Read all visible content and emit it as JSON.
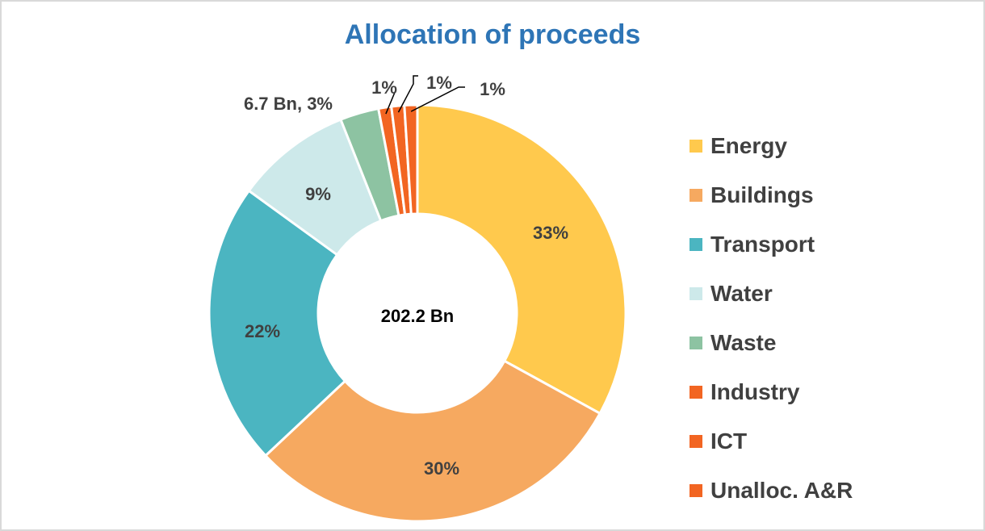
{
  "chart_data": {
    "type": "pie",
    "title": "Allocation of proceeds",
    "center_label": "202.2 Bn",
    "categories": [
      "Energy",
      "Buildings",
      "Transport",
      "Water",
      "Waste",
      "Industry",
      "ICT",
      "Unalloc. A&R"
    ],
    "values": [
      33,
      30,
      22,
      9,
      3,
      1,
      1,
      1
    ],
    "labels": [
      "33%",
      "30%",
      "22%",
      "9%",
      "6.7 Bn, 3%",
      "1%",
      "1%",
      "1%"
    ],
    "colors": [
      "#ffc94d",
      "#f6a960",
      "#4bb5c1",
      "#cde9ea",
      "#8dc3a2",
      "#f26522",
      "#f26522",
      "#f26522"
    ],
    "legend_position": "right",
    "hole": "donut"
  }
}
